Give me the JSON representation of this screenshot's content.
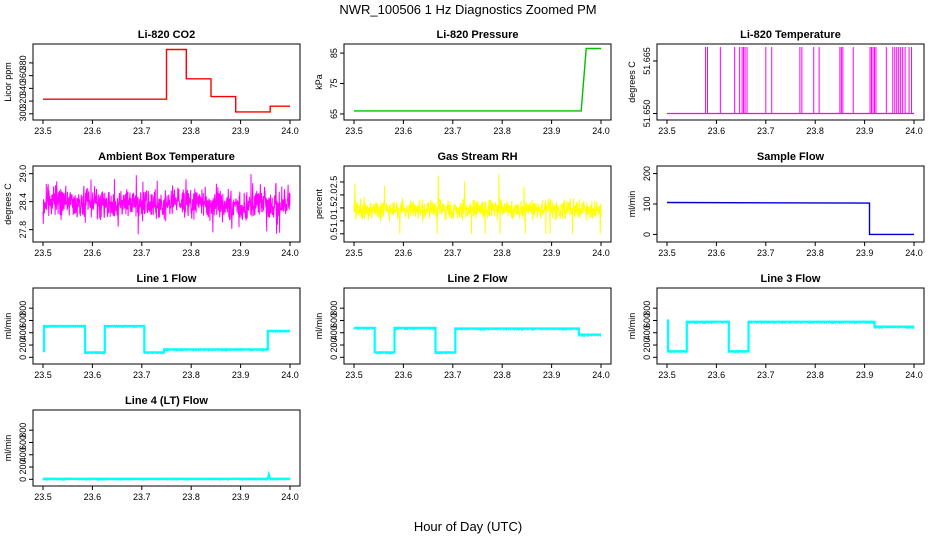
{
  "figure": {
    "title": "NWR_100506  1 Hz Diagnostics Zoomed PM",
    "xlabel": "Hour of Day (UTC)"
  },
  "chart_data": [
    {
      "type": "line",
      "title": "Li-820 CO2",
      "xlabel": "",
      "ylabel": "Licor ppm",
      "color": "#ff0000",
      "xlim": [
        23.5,
        24.0
      ],
      "ylim": [
        295,
        405
      ],
      "xticks": [
        23.5,
        23.6,
        23.7,
        23.8,
        23.9,
        24.0
      ],
      "xtick_labels": [
        "23.5",
        "23.6",
        "23.7",
        "23.8",
        "23.9",
        "24.0"
      ],
      "yticks": [
        300,
        320,
        340,
        360,
        380
      ],
      "ytick_labels": [
        "300",
        "320",
        "340",
        "360",
        "380"
      ],
      "series": [
        {
          "x": [
            23.5,
            23.75,
            23.75,
            23.79,
            23.79,
            23.82,
            23.82,
            23.84,
            23.84,
            23.87,
            23.87,
            23.89,
            23.89,
            23.96,
            23.96,
            24.0
          ],
          "y": [
            323,
            323,
            401,
            401,
            355,
            355,
            355,
            355,
            327,
            327,
            327,
            327,
            303,
            303,
            312,
            312
          ]
        }
      ]
    },
    {
      "type": "line",
      "title": "Li-820 Pressure",
      "xlabel": "",
      "ylabel": "kPa",
      "color": "#00c000",
      "xlim": [
        23.5,
        24.0
      ],
      "ylim": [
        64,
        87
      ],
      "xticks": [
        23.5,
        23.6,
        23.7,
        23.8,
        23.9,
        24.0
      ],
      "xtick_labels": [
        "23.5",
        "23.6",
        "23.7",
        "23.8",
        "23.9",
        "24.0"
      ],
      "yticks": [
        65,
        75,
        85
      ],
      "ytick_labels": [
        "65",
        "75",
        "85"
      ],
      "series": [
        {
          "x": [
            23.5,
            23.95,
            23.96,
            23.97,
            24.0
          ],
          "y": [
            66,
            66,
            66,
            86.5,
            86.5
          ]
        }
      ]
    },
    {
      "type": "line",
      "title": "Li-820 Temperature",
      "xlabel": "",
      "ylabel": "degrees C",
      "color": "#ff00ff",
      "xlim": [
        23.5,
        24.0
      ],
      "ylim": [
        51.649,
        51.669
      ],
      "xticks": [
        23.5,
        23.6,
        23.7,
        23.8,
        23.9,
        24.0
      ],
      "xtick_labels": [
        "23.5",
        "23.6",
        "23.7",
        "23.8",
        "23.9",
        "24.0"
      ],
      "yticks": [
        51.65,
        51.665
      ],
      "ytick_labels": [
        "51.650",
        "51.665"
      ],
      "baseline": 51.65,
      "spike_value": 51.669,
      "spikes_x": [
        23.578,
        23.582,
        23.608,
        23.637,
        23.647,
        23.652,
        23.655,
        23.658,
        23.662,
        23.7,
        23.712,
        23.769,
        23.773,
        23.797,
        23.808,
        23.85,
        23.853,
        23.856,
        23.877,
        23.911,
        23.914,
        23.917,
        23.92,
        23.923,
        23.944,
        23.957,
        23.961,
        23.965,
        23.969,
        23.973,
        23.977,
        23.982,
        23.99,
        23.995
      ]
    },
    {
      "type": "line",
      "title": "Ambient Box Temperature",
      "xlabel": "",
      "ylabel": "degrees C",
      "color": "#ff00ff",
      "xlim": [
        23.5,
        24.0
      ],
      "ylim": [
        27.6,
        29.1
      ],
      "xticks": [
        23.5,
        23.6,
        23.7,
        23.8,
        23.9,
        24.0
      ],
      "xtick_labels": [
        "23.5",
        "23.6",
        "23.7",
        "23.8",
        "23.9",
        "24.0"
      ],
      "yticks": [
        27.8,
        28.4,
        29.0
      ],
      "ytick_labels": [
        "27.8",
        "28.4",
        "29.0"
      ],
      "noise": {
        "mean": 28.35,
        "spread": 0.5,
        "min": 27.7,
        "max": 29.0
      }
    },
    {
      "type": "line",
      "title": "Gas Stream RH",
      "xlabel": "",
      "ylabel": "percent",
      "color": "#ffff00",
      "xlim": [
        23.5,
        24.0
      ],
      "ylim": [
        0.3,
        3.0
      ],
      "xticks": [
        23.5,
        23.6,
        23.7,
        23.8,
        23.9,
        24.0
      ],
      "xtick_labels": [
        "23.5",
        "23.6",
        "23.7",
        "23.8",
        "23.9",
        "24.0"
      ],
      "yticks": [
        0.5,
        1.0,
        1.5,
        2.0,
        2.5
      ],
      "ytick_labels": [
        "0.5",
        "1.0",
        "1.5",
        "2.0",
        "2.5"
      ],
      "noise": {
        "mean": 1.45,
        "spread": 0.55,
        "min": 0.5,
        "max": 2.9
      }
    },
    {
      "type": "line",
      "title": "Sample Flow",
      "xlabel": "",
      "ylabel": "ml/min",
      "color": "#0000cc",
      "xlim": [
        23.5,
        24.0
      ],
      "ylim": [
        -15,
        215
      ],
      "xticks": [
        23.5,
        23.6,
        23.7,
        23.8,
        23.9,
        24.0
      ],
      "xtick_labels": [
        "23.5",
        "23.6",
        "23.7",
        "23.8",
        "23.9",
        "24.0"
      ],
      "yticks": [
        0,
        100,
        200
      ],
      "ytick_labels": [
        "0",
        "100",
        "200"
      ],
      "series": [
        {
          "x": [
            23.5,
            23.91,
            23.91,
            24.0
          ],
          "y": [
            105,
            103,
            0,
            0
          ]
        }
      ]
    },
    {
      "type": "line",
      "title": "Line 1 Flow",
      "xlabel": "",
      "ylabel": "ml/min",
      "color": "#00ffff",
      "xlim": [
        23.5,
        24.0
      ],
      "ylim": [
        -60,
        1080
      ],
      "xticks": [
        23.5,
        23.6,
        23.7,
        23.8,
        23.9,
        24.0
      ],
      "xtick_labels": [
        "23.5",
        "23.6",
        "23.7",
        "23.8",
        "23.9",
        "24.0"
      ],
      "yticks": [
        0,
        200,
        400,
        600,
        800
      ],
      "ytick_labels": [
        "0",
        "200",
        "400",
        "600",
        "800"
      ],
      "series": [
        {
          "x": [
            23.5,
            23.502,
            23.502,
            23.585,
            23.585,
            23.625,
            23.625,
            23.705,
            23.705,
            23.745,
            23.745,
            23.955,
            23.955,
            24.0
          ],
          "y": [
            100,
            100,
            510,
            510,
            80,
            80,
            510,
            510,
            80,
            80,
            130,
            130,
            430,
            430
          ]
        }
      ]
    },
    {
      "type": "line",
      "title": "Line 2 Flow",
      "xlabel": "",
      "ylabel": "ml/min",
      "color": "#00ffff",
      "xlim": [
        23.5,
        24.0
      ],
      "ylim": [
        -60,
        1080
      ],
      "xticks": [
        23.5,
        23.6,
        23.7,
        23.8,
        23.9,
        24.0
      ],
      "xtick_labels": [
        "23.5",
        "23.6",
        "23.7",
        "23.8",
        "23.9",
        "24.0"
      ],
      "yticks": [
        0,
        200,
        400,
        600,
        800
      ],
      "ytick_labels": [
        "0",
        "200",
        "400",
        "600",
        "800"
      ],
      "series": [
        {
          "x": [
            23.5,
            23.542,
            23.542,
            23.582,
            23.582,
            23.665,
            23.665,
            23.705,
            23.705,
            23.955,
            23.955,
            24.0
          ],
          "y": [
            480,
            480,
            80,
            80,
            480,
            480,
            80,
            80,
            470,
            470,
            370,
            370
          ]
        }
      ]
    },
    {
      "type": "line",
      "title": "Line 3 Flow",
      "xlabel": "",
      "ylabel": "ml/min",
      "color": "#00ffff",
      "xlim": [
        23.5,
        24.0
      ],
      "ylim": [
        -60,
        1080
      ],
      "xticks": [
        23.5,
        23.6,
        23.7,
        23.8,
        23.9,
        24.0
      ],
      "xtick_labels": [
        "23.5",
        "23.6",
        "23.7",
        "23.8",
        "23.9",
        "24.0"
      ],
      "yticks": [
        0,
        200,
        400,
        600,
        800
      ],
      "ytick_labels": [
        "0",
        "200",
        "400",
        "600",
        "800"
      ],
      "series": [
        {
          "x": [
            23.5,
            23.502,
            23.502,
            23.54,
            23.54,
            23.625,
            23.625,
            23.665,
            23.665,
            23.92,
            23.92,
            24.0
          ],
          "y": [
            600,
            600,
            100,
            100,
            580,
            580,
            100,
            100,
            580,
            580,
            500,
            500
          ]
        }
      ]
    },
    {
      "type": "line",
      "title": "Line 4 (LT) Flow",
      "xlabel": "",
      "ylabel": "ml/min",
      "color": "#00ffff",
      "xlim": [
        23.5,
        24.0
      ],
      "ylim": [
        -60,
        1080
      ],
      "xticks": [
        23.5,
        23.6,
        23.7,
        23.8,
        23.9,
        24.0
      ],
      "xtick_labels": [
        "23.5",
        "23.6",
        "23.7",
        "23.8",
        "23.9",
        "24.0"
      ],
      "yticks": [
        0,
        200,
        400,
        600,
        800
      ],
      "ytick_labels": [
        "0",
        "200",
        "400",
        "600",
        "800"
      ],
      "series": [
        {
          "x": [
            23.5,
            23.955,
            23.957,
            23.96,
            24.0
          ],
          "y": [
            10,
            10,
            80,
            10,
            10
          ]
        }
      ]
    }
  ]
}
